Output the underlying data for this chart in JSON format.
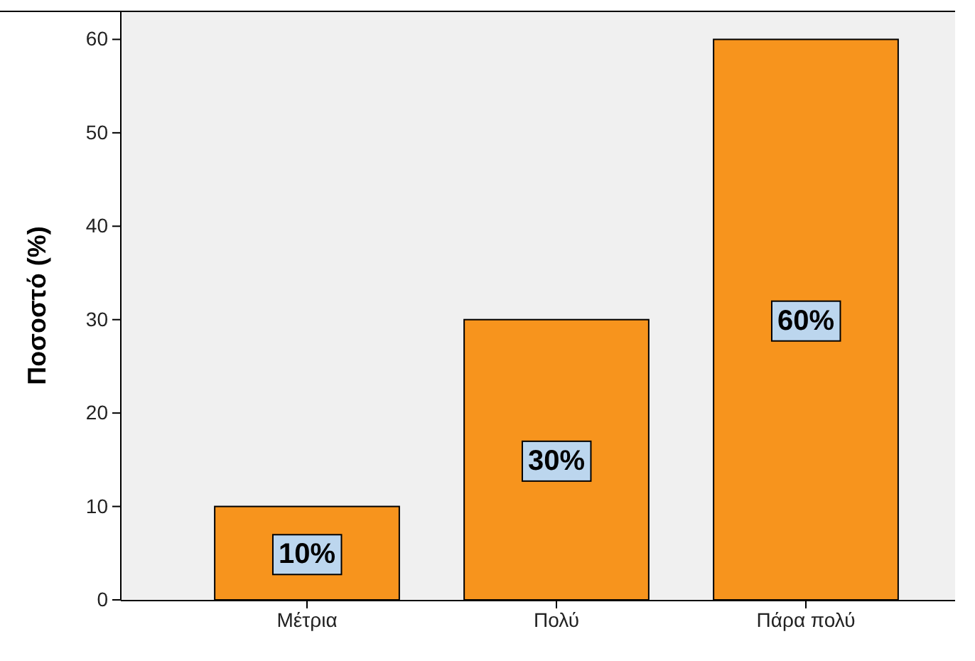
{
  "chart_data": {
    "type": "bar",
    "ylabel": "Ποσοστό (%)",
    "categories": [
      "Μέτρια",
      "Πολύ",
      "Πάρα πολύ"
    ],
    "values": [
      10,
      30,
      60
    ],
    "color": "#f7941d",
    "value_labels": [
      "10%",
      "30%",
      "60%"
    ],
    "ylim": [
      0,
      63
    ],
    "yticks": [
      0,
      10,
      20,
      30,
      40,
      50,
      60
    ]
  }
}
